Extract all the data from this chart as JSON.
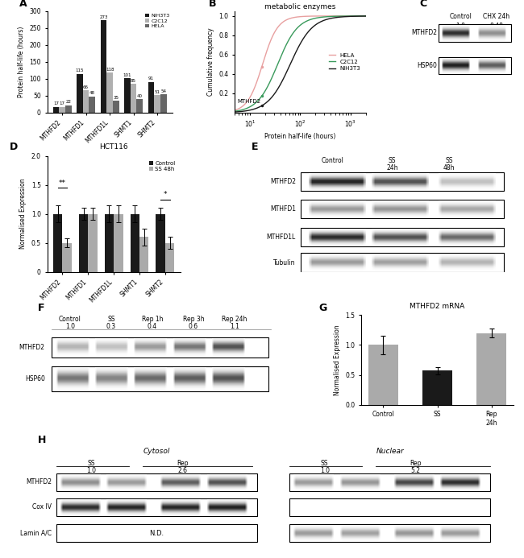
{
  "panel_A": {
    "categories": [
      "MTHFD2",
      "MTHFD1",
      "MTHFD1L",
      "SHMT1",
      "SHMT2"
    ],
    "NIH3T3": [
      17,
      115,
      273,
      101,
      91
    ],
    "C2C12": [
      17,
      66,
      118,
      85,
      51
    ],
    "HELA": [
      22,
      48,
      35,
      40,
      54
    ],
    "colors": {
      "NIH3T3": "#1a1a1a",
      "C2C12": "#b0b0b0",
      "HELA": "#666666"
    },
    "ylabel": "Protein half-life (hours)",
    "ylim": [
      0,
      300
    ],
    "yticks": [
      0,
      50,
      100,
      150,
      200,
      250,
      300
    ]
  },
  "panel_B": {
    "title": "metabolic enzymes",
    "xlabel": "Protein half-life (hours)",
    "ylabel": "Cumulative frequency",
    "annotation": "MTHFD2",
    "colors": {
      "HELA": "#e8a0a0",
      "C2C12": "#3a9a5c",
      "NIH3T3": "#1a1a1a"
    }
  },
  "panel_D": {
    "title": "HCT116",
    "categories": [
      "MTHFD2",
      "MTHFD1",
      "MTHFD1L",
      "SHMT1",
      "SHMT2"
    ],
    "Control": [
      1.0,
      1.0,
      1.0,
      1.0,
      1.0
    ],
    "SS48h": [
      0.5,
      1.0,
      1.0,
      0.6,
      0.5
    ],
    "Control_err": [
      0.15,
      0.1,
      0.15,
      0.15,
      0.1
    ],
    "SS48h_err": [
      0.08,
      0.1,
      0.15,
      0.15,
      0.1
    ],
    "colors": {
      "Control": "#1a1a1a",
      "SS48h": "#aaaaaa"
    },
    "ylabel": "Normalised Expression",
    "ylim": [
      0,
      2.0
    ],
    "yticks": [
      0,
      0.5,
      1.0,
      1.5,
      2.0
    ]
  },
  "panel_G": {
    "title": "MTHFD2 mRNA",
    "categories": [
      "Control",
      "SS",
      "Rep\n24h"
    ],
    "values": [
      1.0,
      0.57,
      1.2
    ],
    "errors": [
      0.15,
      0.06,
      0.08
    ],
    "colors": [
      "#aaaaaa",
      "#1a1a1a",
      "#aaaaaa"
    ],
    "ylabel": "Normalised Expression",
    "ylim": [
      0,
      1.5
    ],
    "yticks": [
      0.0,
      0.5,
      1.0,
      1.5
    ]
  }
}
